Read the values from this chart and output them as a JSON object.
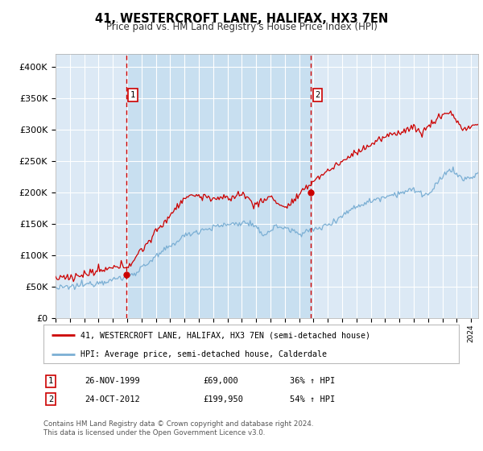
{
  "title": "41, WESTERCROFT LANE, HALIFAX, HX3 7EN",
  "subtitle": "Price paid vs. HM Land Registry's House Price Index (HPI)",
  "legend_property": "41, WESTERCROFT LANE, HALIFAX, HX3 7EN (semi-detached house)",
  "legend_hpi": "HPI: Average price, semi-detached house, Calderdale",
  "purchase1_date": "26-NOV-1999",
  "purchase1_price": 69000,
  "purchase1_price_str": "£69,000",
  "purchase1_label": "36% ↑ HPI",
  "purchase2_date": "24-OCT-2012",
  "purchase2_price": 199950,
  "purchase2_price_str": "£199,950",
  "purchase2_label": "54% ↑ HPI",
  "footnote1": "Contains HM Land Registry data © Crown copyright and database right 2024.",
  "footnote2": "This data is licensed under the Open Government Licence v3.0.",
  "ylim": [
    0,
    420000
  ],
  "yticks": [
    0,
    50000,
    100000,
    150000,
    200000,
    250000,
    300000,
    350000,
    400000
  ],
  "ytick_labels": [
    "£0",
    "£50K",
    "£100K",
    "£150K",
    "£200K",
    "£250K",
    "£300K",
    "£350K",
    "£400K"
  ],
  "background_color": "#dce9f5",
  "highlight_color": "#c8dff0",
  "fig_bg_color": "#ffffff",
  "red_color": "#cc0000",
  "blue_color": "#7bafd4",
  "vline_color": "#cc0000",
  "purchase1_x": 1999.92,
  "purchase2_x": 2012.8,
  "xmin": 1995.0,
  "xmax": 2024.5
}
